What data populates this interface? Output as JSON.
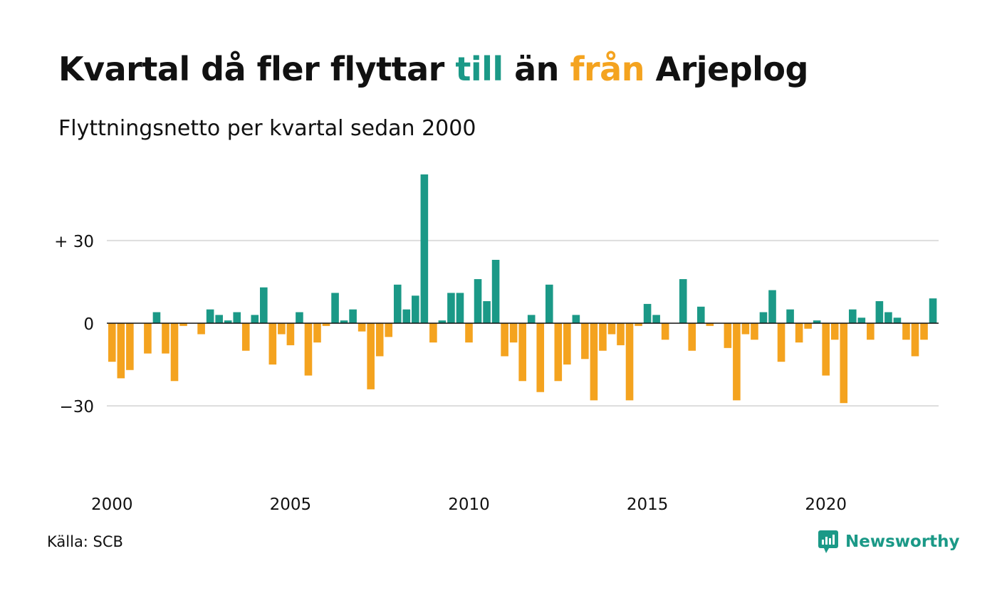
{
  "title": {
    "part1": "Kvartal då fler flyttar ",
    "till": "till",
    "part2": " än ",
    "fran": "från",
    "part3": " Arjeplog"
  },
  "subtitle": "Flyttningsnetto per kvartal sedan 2000",
  "source": "Källa: SCB",
  "brand": {
    "name": "Newsworthy",
    "icon": "newsworthy-logo-icon"
  },
  "colors": {
    "positive": "#1b9987",
    "negative": "#f4a31f",
    "text": "#111111",
    "grid": "#dddddd"
  },
  "chart_data": {
    "type": "bar",
    "ylim": [
      -60,
      60
    ],
    "yticks": [
      {
        "value": 30,
        "label": "+ 30"
      },
      {
        "value": 0,
        "label": "0"
      },
      {
        "value": -30,
        "label": "−30"
      }
    ],
    "xticks": [
      {
        "year": 2000,
        "label": "2000"
      },
      {
        "year": 2005,
        "label": "2005"
      },
      {
        "year": 2010,
        "label": "2010"
      },
      {
        "year": 2015,
        "label": "2015"
      },
      {
        "year": 2020,
        "label": "2020"
      }
    ],
    "start_year": 2000,
    "start_quarter": 1,
    "values": [
      -14,
      -20,
      -17,
      0,
      -11,
      4,
      -11,
      -21,
      -1,
      0,
      -4,
      5,
      3,
      1,
      4,
      -10,
      3,
      13,
      -15,
      -4,
      -8,
      4,
      -19,
      -7,
      -1,
      11,
      1,
      5,
      -3,
      -24,
      -12,
      -5,
      14,
      5,
      10,
      54,
      -7,
      1,
      11,
      11,
      -7,
      16,
      8,
      23,
      -12,
      -7,
      -21,
      3,
      -25,
      14,
      -21,
      -15,
      3,
      -13,
      -28,
      -10,
      -4,
      -8,
      -28,
      -1,
      7,
      3,
      -6,
      0,
      16,
      -10,
      6,
      -1,
      0,
      -9,
      -28,
      -4,
      -6,
      4,
      12,
      -14,
      5,
      -7,
      -2,
      1,
      -19,
      -6,
      -29,
      5,
      2,
      -6,
      8,
      4,
      2,
      -6,
      -12,
      -6,
      9
    ]
  }
}
